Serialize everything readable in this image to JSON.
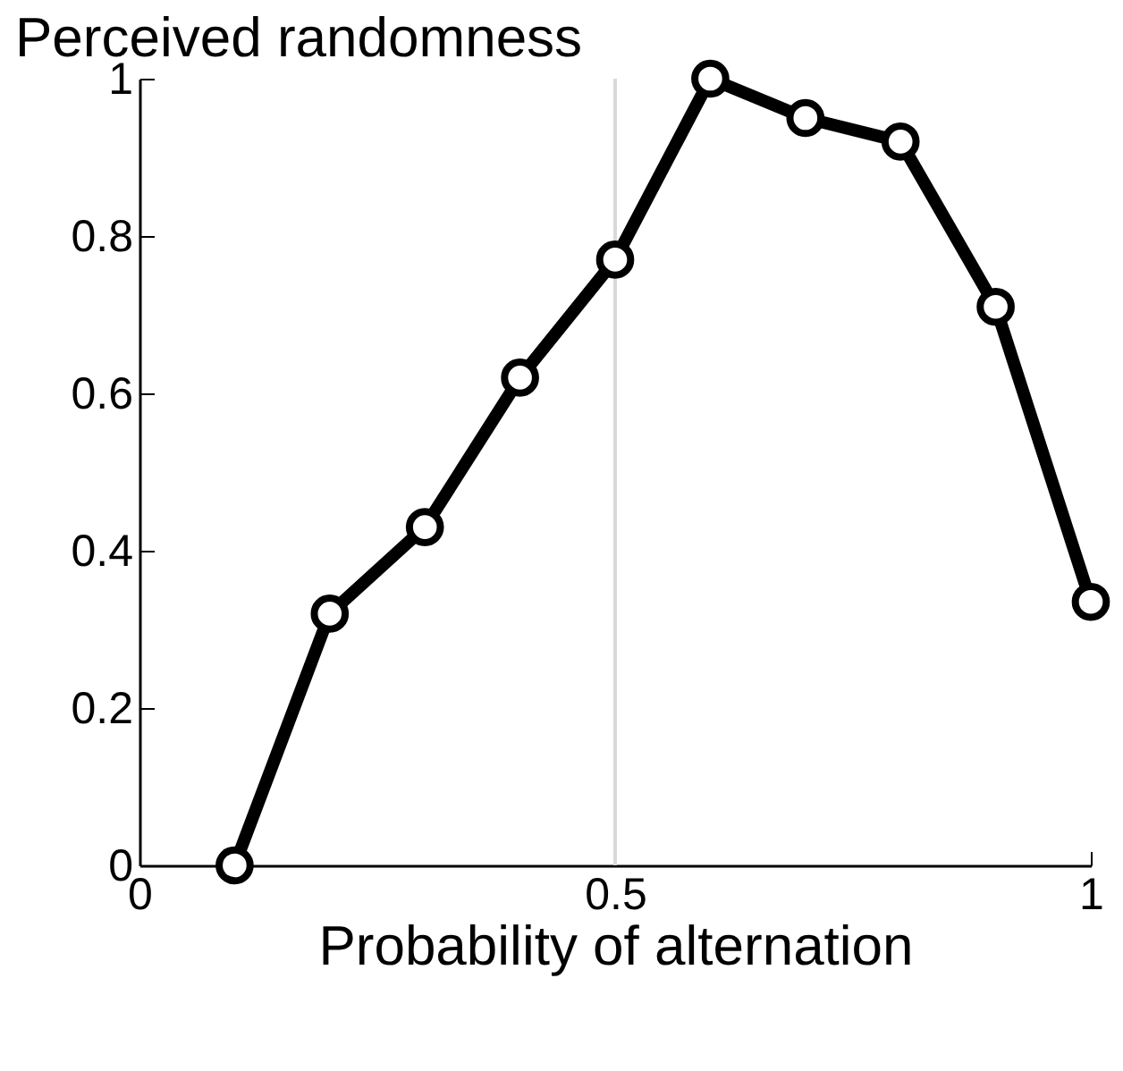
{
  "chart_data": {
    "type": "line",
    "ylabel": "Perceived randomness",
    "xlabel": "Probability of alternation",
    "x": [
      0.1,
      0.2,
      0.3,
      0.4,
      0.5,
      0.6,
      0.7,
      0.8,
      0.9,
      1.0
    ],
    "series": [
      {
        "color": "#000000",
        "values": [
          0,
          0.32,
          0.43,
          0.62,
          0.77,
          1.0,
          0.95,
          0.92,
          0.71,
          0.335
        ]
      }
    ],
    "xlim": [
      0,
      1
    ],
    "xticks": [
      0,
      0.5,
      1
    ],
    "ylim": [
      0,
      1
    ],
    "yticks": [
      0,
      0.2,
      0.4,
      0.6,
      0.8,
      1
    ],
    "ref_lines": [
      {
        "axis": "x",
        "value": 0.5,
        "color": "#d9d9d9"
      }
    ],
    "marker": "circle",
    "line_style": "solid",
    "grid": false
  }
}
